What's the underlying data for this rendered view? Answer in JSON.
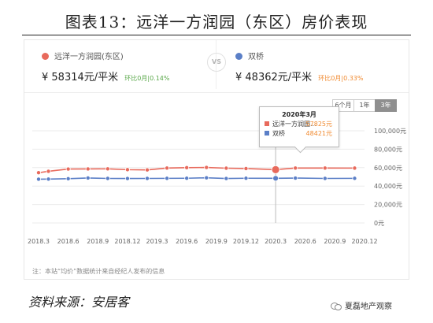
{
  "figure": {
    "title": "图表13：远洋一方润园（东区）房价表现",
    "source": "资料来源：安居客",
    "watermark": "夏磊地产观察"
  },
  "header": {
    "left": {
      "name": "远洋一方润园(东区)",
      "price": "¥ 58314元/平米",
      "change": "环比0月|0.14%",
      "color": "#e86a5c",
      "change_color": "#5aa84a"
    },
    "vs": "VS",
    "right": {
      "name": "双桥",
      "price": "¥ 48362元/平米",
      "change": "环比0月|0.33%",
      "color": "#5b7fc7",
      "change_color": "#f08a30"
    }
  },
  "range_tabs": {
    "items": [
      "6个月",
      "1年",
      "3年"
    ],
    "active": 2
  },
  "tooltip": {
    "title": "2020年3月",
    "rows": [
      {
        "name": "远洋一方润园...",
        "value": "57825元",
        "color": "#e86a5c"
      },
      {
        "name": "双桥",
        "value": "48421元",
        "color": "#5b7fc7"
      }
    ]
  },
  "note": "注：本站“均价”数据统计来自经纪人发布的信息",
  "chart_data": {
    "type": "line",
    "x_ticks": [
      "2018.3",
      "2018.6",
      "2018.9",
      "2018.12",
      "2019.3",
      "2019.6",
      "2019.9",
      "2019.12",
      "2020.3",
      "2020.6",
      "2020.9",
      "2020.12"
    ],
    "x": [
      "2018.3",
      "2018.4",
      "2018.6",
      "2018.8",
      "2018.10",
      "2018.12",
      "2019.2",
      "2019.4",
      "2019.6",
      "2019.8",
      "2019.10",
      "2019.12",
      "2020.3",
      "2020.5",
      "2020.8",
      "2020.11"
    ],
    "y_ticks": [
      "0元",
      "20,000元",
      "40,000元",
      "60,000元",
      "80,000元",
      "100,000元"
    ],
    "ylim": [
      0,
      100000
    ],
    "grid": true,
    "series": [
      {
        "name": "远洋一方润园(东区)",
        "color": "#e86a5c",
        "values": [
          54500,
          56000,
          58500,
          58600,
          58700,
          57800,
          57500,
          59600,
          60000,
          60200,
          59400,
          59000,
          57825,
          59600,
          59600,
          59500
        ]
      },
      {
        "name": "双桥",
        "color": "#5b7fc7",
        "values": [
          47500,
          47600,
          48000,
          48800,
          48300,
          48200,
          48300,
          48400,
          48500,
          49000,
          48200,
          48500,
          48421,
          48700,
          48300,
          48400
        ]
      }
    ],
    "highlight_index": 12
  }
}
